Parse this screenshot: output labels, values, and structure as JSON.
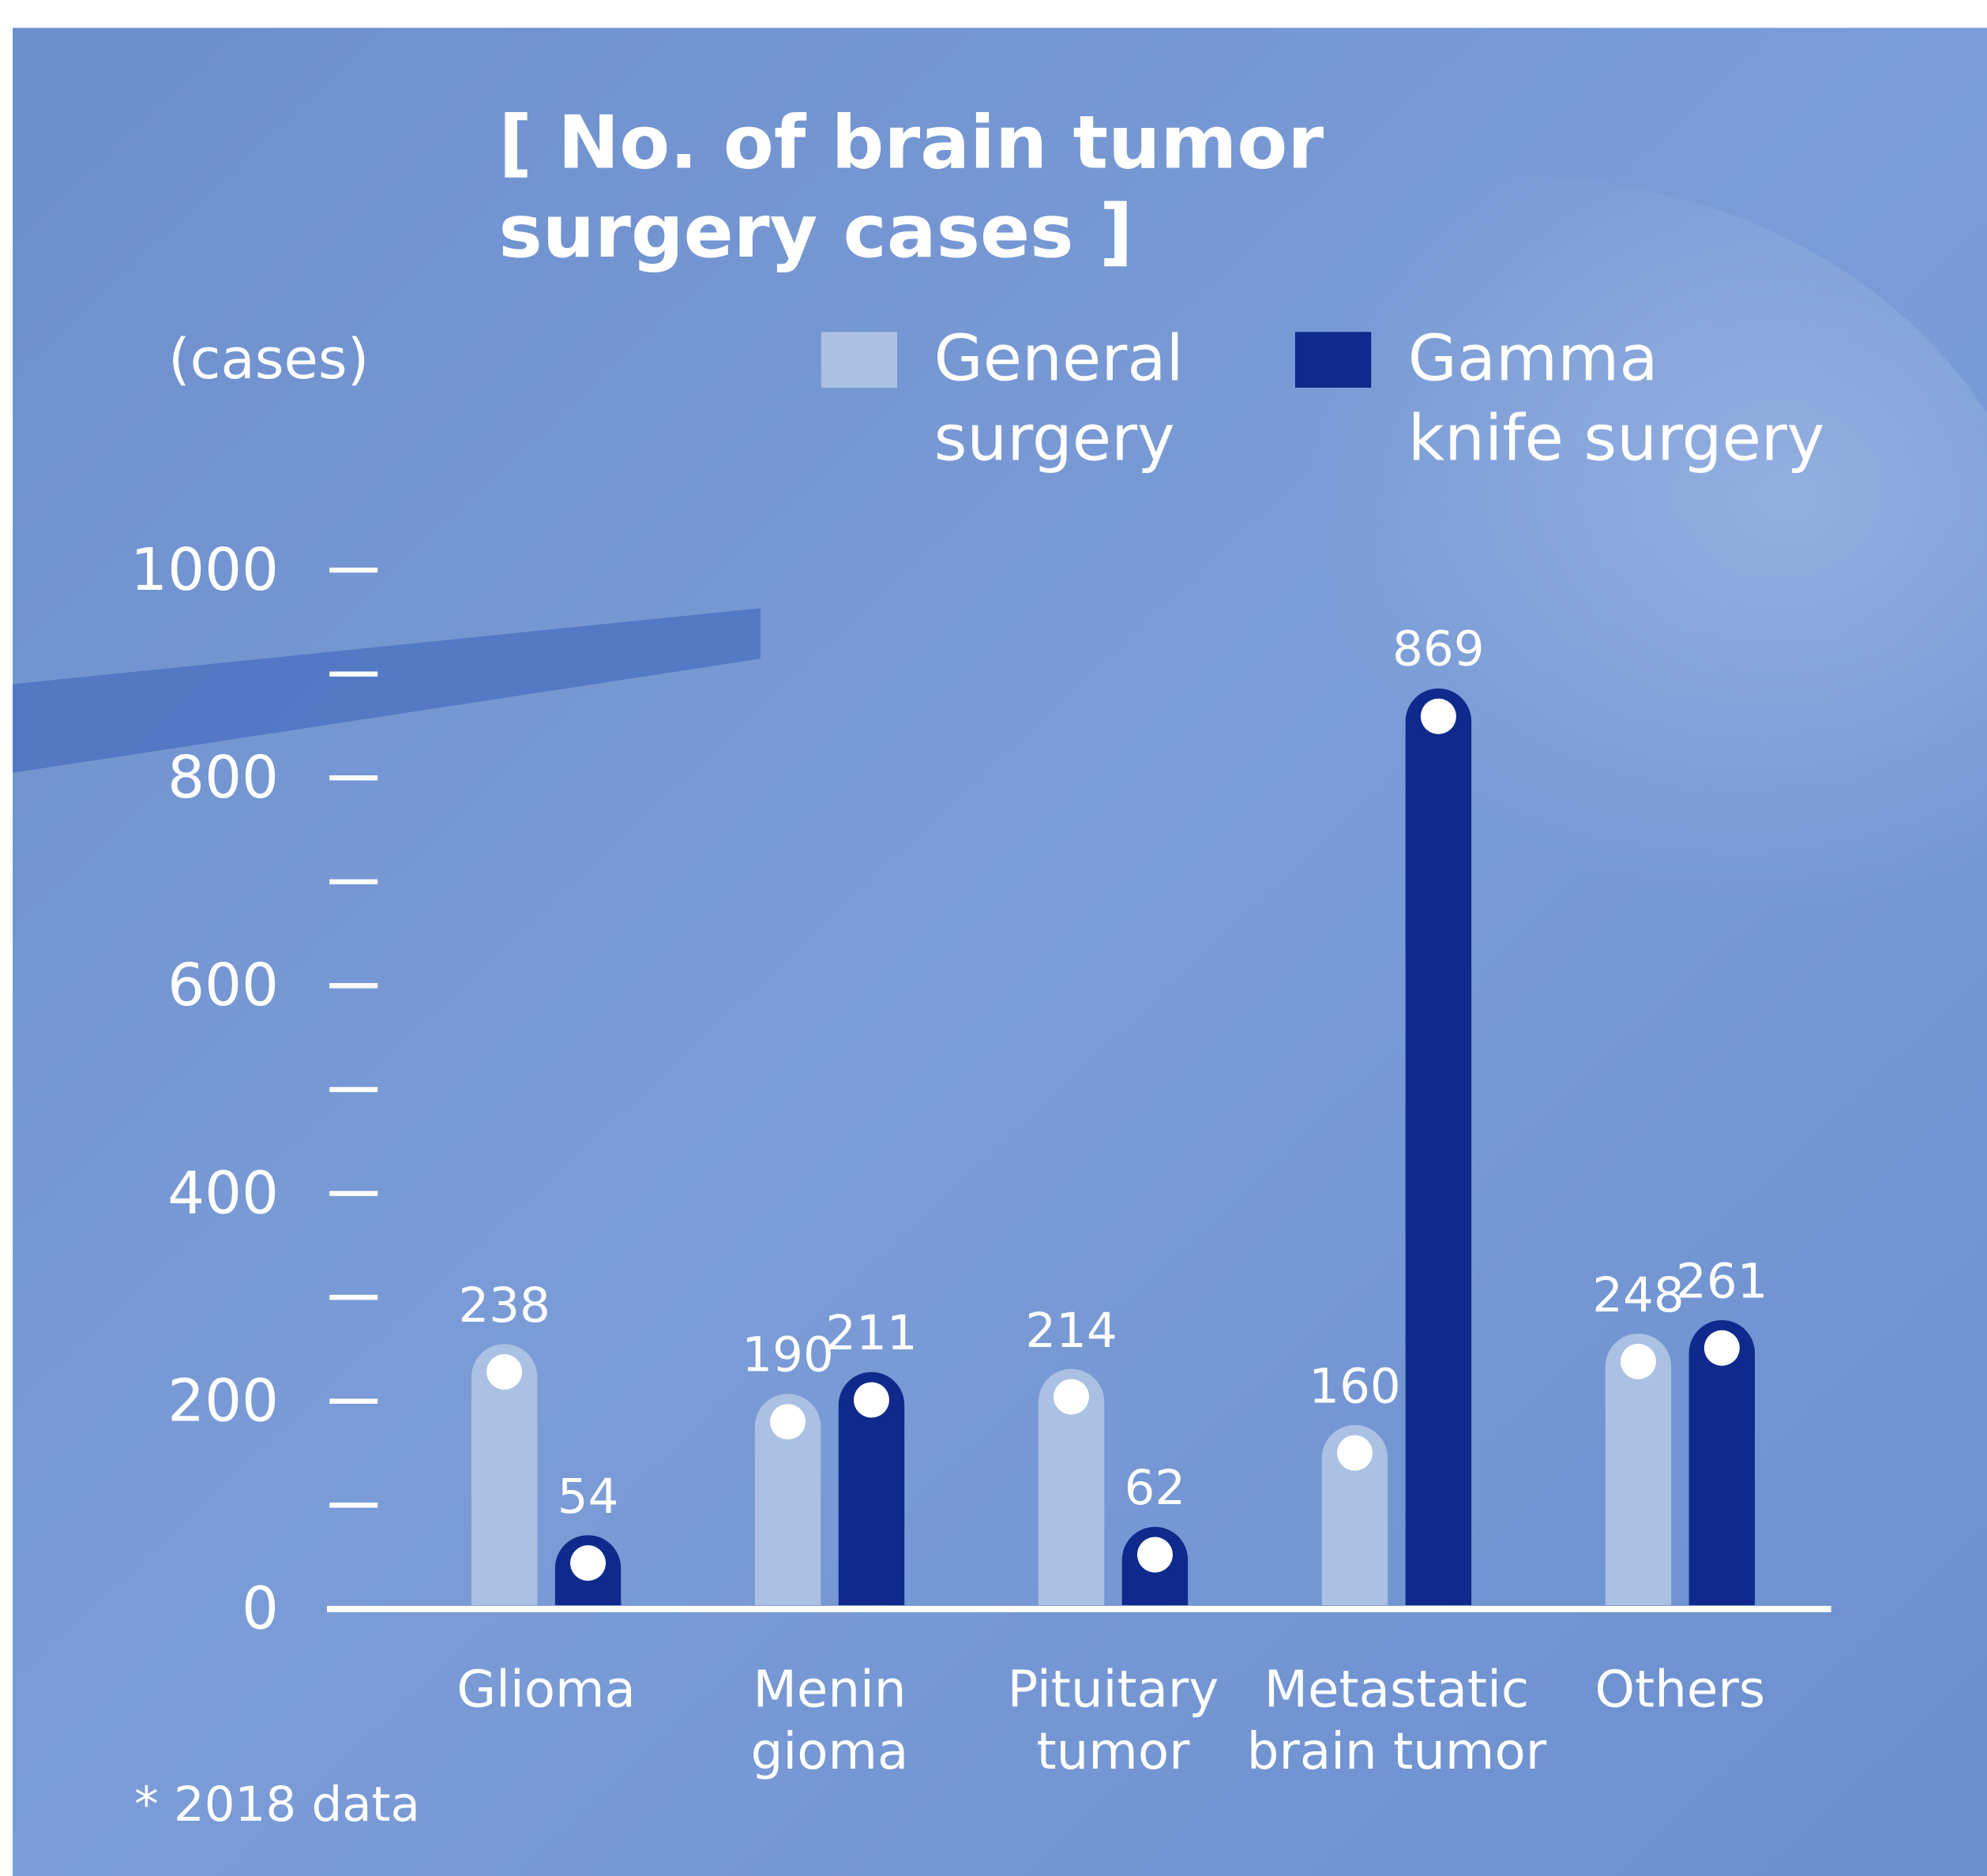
{
  "chart_data": {
    "type": "bar",
    "title": "[ No. of brain tumor surgery cases ]",
    "y_axis_label": "(cases)",
    "footnote": "* 2018 data",
    "categories": [
      "Glioma",
      "Menin\ngioma",
      "Pituitary\ntumor",
      "Metastatic\nbrain tumor",
      "Others"
    ],
    "series": [
      {
        "name": "General\nsurgery",
        "color": "#aac1e3",
        "values": [
          238,
          190,
          214,
          160,
          248
        ]
      },
      {
        "name": "Gamma\nknife surgery",
        "color": "#0f2a8c",
        "values": [
          54,
          211,
          62,
          869,
          261
        ]
      }
    ],
    "ylim": [
      0,
      1000
    ],
    "yticks": [
      0,
      200,
      400,
      600,
      800,
      1000
    ],
    "yminorticks": [
      100,
      300,
      500,
      700,
      900
    ]
  }
}
